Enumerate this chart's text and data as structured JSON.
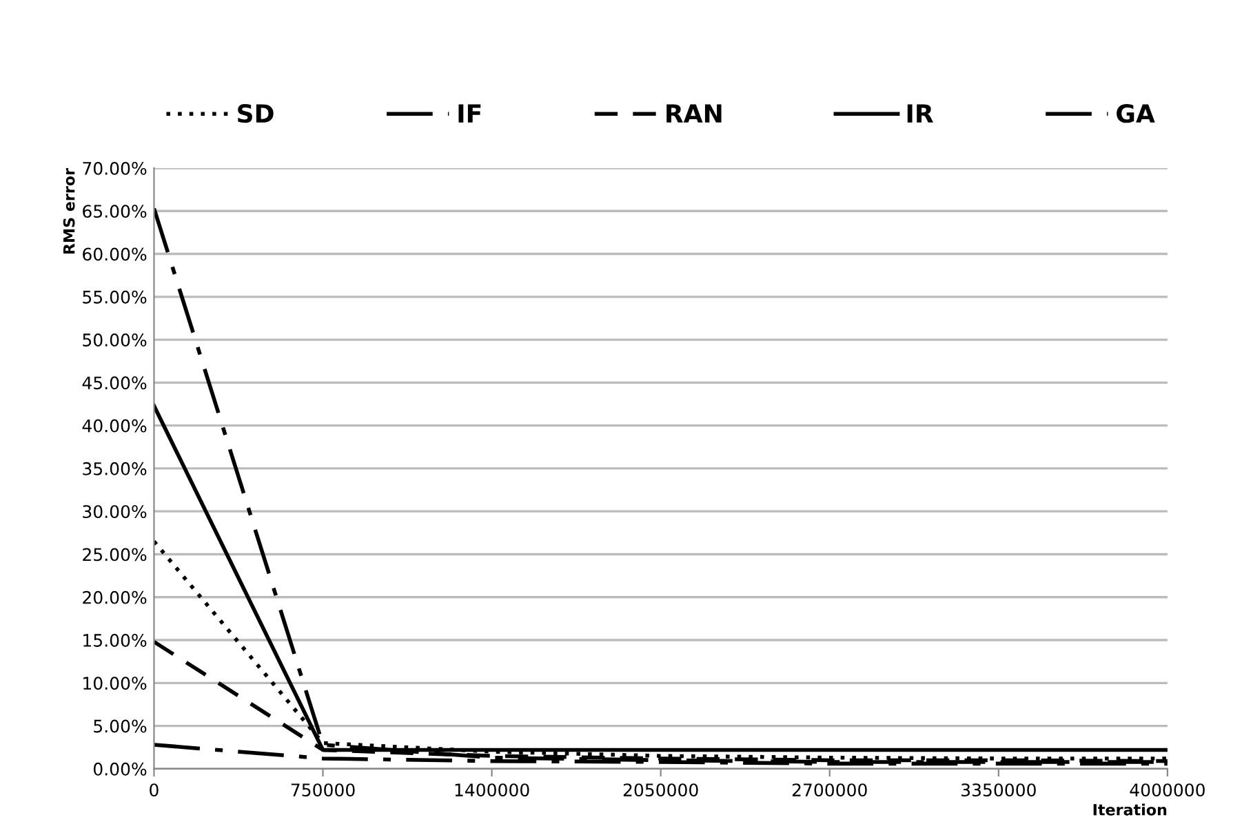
{
  "chart_data": {
    "type": "line",
    "xlabel": "Iteration",
    "ylabel": "RMS error",
    "categories": [
      "0",
      "750000",
      "1400000",
      "2050000",
      "2700000",
      "3350000",
      "4000000"
    ],
    "series": [
      {
        "name": "SD",
        "color": "#000000",
        "line_style": "dotted",
        "values": [
          26.5,
          3.0,
          2.0,
          1.5,
          1.3,
          1.2,
          1.2
        ]
      },
      {
        "name": "IF",
        "color": "#000000",
        "line_style": "dashdot",
        "values": [
          65.3,
          2.8,
          1.3,
          1.0,
          0.8,
          0.8,
          0.8
        ]
      },
      {
        "name": "RAN",
        "color": "#000000",
        "line_style": "dashed",
        "values": [
          14.8,
          2.2,
          1.5,
          1.2,
          1.0,
          1.0,
          0.9
        ]
      },
      {
        "name": "IR",
        "color": "#000000",
        "line_style": "solid",
        "values": [
          42.3,
          2.2,
          2.2,
          2.2,
          2.2,
          2.2,
          2.2
        ]
      },
      {
        "name": "GA",
        "color": "#000000",
        "line_style": "dashdot",
        "values": [
          2.8,
          1.2,
          0.9,
          0.8,
          0.6,
          0.6,
          0.6
        ]
      }
    ],
    "ylim": [
      0,
      70
    ],
    "yticks": [
      {
        "value": 0,
        "label": "0.00%"
      },
      {
        "value": 5,
        "label": "5.00%"
      },
      {
        "value": 10,
        "label": "10.00%"
      },
      {
        "value": 15,
        "label": "15.00%"
      },
      {
        "value": 20,
        "label": "20.00%"
      },
      {
        "value": 25,
        "label": "25.00%"
      },
      {
        "value": 30,
        "label": "30.00%"
      },
      {
        "value": 35,
        "label": "35.00%"
      },
      {
        "value": 40,
        "label": "40.00%"
      },
      {
        "value": 45,
        "label": "45.00%"
      },
      {
        "value": 50,
        "label": "50.00%"
      },
      {
        "value": 55,
        "label": "55.00%"
      },
      {
        "value": 60,
        "label": "60.00%"
      },
      {
        "value": 65,
        "label": "65.00%"
      },
      {
        "value": 70,
        "label": "70.00%"
      }
    ],
    "grid": "y",
    "legend": "top",
    "marker": "none"
  }
}
